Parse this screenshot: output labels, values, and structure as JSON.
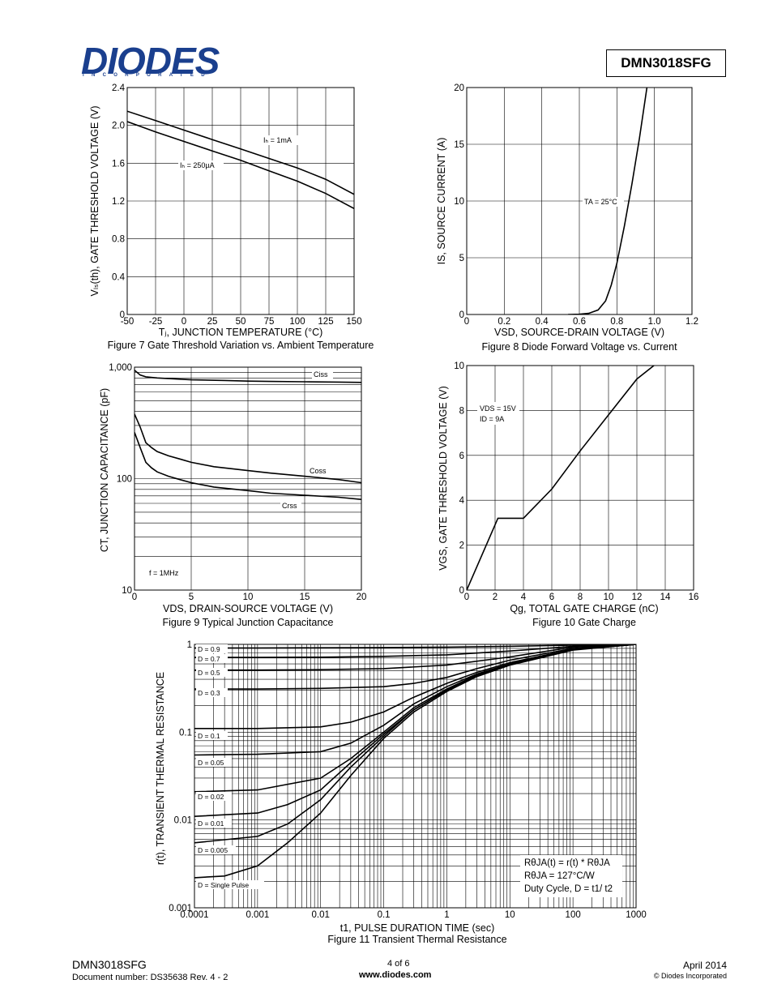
{
  "header": {
    "logo_text": "DIODES",
    "logo_sub": "INCORPORATED",
    "part_number": "DMN3018SFG"
  },
  "footer": {
    "part": "DMN3018SFG",
    "doc_number": "Document number: DS35638  Rev. 4 - 2",
    "page": "4 of 6",
    "website": "www.diodes.com",
    "date": "April 2014",
    "copyright": "© Diodes Incorporated"
  },
  "chart_data": [
    {
      "id": "fig7",
      "type": "line",
      "caption": "Figure 7  Gate Threshold Variation vs. Ambient Temperature",
      "xlabel": "Tⱼ, JUNCTION TEMPERATURE (°C)",
      "ylabel": "Vₗₛ(th), GATE THRESHOLD VOLTAGE (V)",
      "xlim": [
        -50,
        150
      ],
      "ylim": [
        0,
        2.4
      ],
      "x_ticks": [
        "-50",
        "-25",
        "0",
        "25",
        "50",
        "75",
        "100",
        "125",
        "150"
      ],
      "y_ticks": [
        "0",
        "0.4",
        "0.8",
        "1.2",
        "1.6",
        "2.0",
        "2.4"
      ],
      "series": [
        {
          "name": "Iₕ = 1mA",
          "x": [
            -50,
            -25,
            0,
            25,
            50,
            75,
            100,
            125,
            150
          ],
          "y": [
            2.15,
            2.05,
            1.95,
            1.85,
            1.75,
            1.65,
            1.55,
            1.43,
            1.27
          ]
        },
        {
          "name": "Iₕ = 250µA",
          "x": [
            -50,
            -25,
            0,
            25,
            50,
            75,
            100,
            125,
            150
          ],
          "y": [
            2.04,
            1.93,
            1.83,
            1.73,
            1.63,
            1.52,
            1.41,
            1.28,
            1.12
          ]
        }
      ]
    },
    {
      "id": "fig8",
      "type": "line",
      "caption": "Figure 8  Diode Forward Voltage vs. Current",
      "xlabel": "VSD, SOURCE-DRAIN VOLTAGE (V)",
      "ylabel": "IS, SOURCE CURRENT (A)",
      "xlim": [
        0,
        1.2
      ],
      "ylim": [
        0,
        20
      ],
      "x_ticks": [
        "0",
        "0.2",
        "0.4",
        "0.6",
        "0.8",
        "1.0",
        "1.2"
      ],
      "y_ticks": [
        "0",
        "5",
        "10",
        "15",
        "20"
      ],
      "annotation": "TA = 25°C",
      "series": [
        {
          "name": "",
          "x": [
            0.54,
            0.6,
            0.65,
            0.7,
            0.74,
            0.77,
            0.8,
            0.84,
            0.88,
            0.92,
            0.96
          ],
          "y": [
            0,
            0.02,
            0.1,
            0.4,
            1.2,
            2.6,
            4.5,
            7.8,
            11.5,
            15.5,
            20
          ]
        }
      ]
    },
    {
      "id": "fig9",
      "type": "line",
      "caption": "Figure 9 Typical Junction Capacitance",
      "xlabel": "VDS, DRAIN-SOURCE VOLTAGE (V)",
      "ylabel": "CT, JUNCTION CAPACITANCE (pF)",
      "xlim": [
        0,
        20
      ],
      "ylim": [
        10,
        1000
      ],
      "yscale": "log",
      "x_ticks": [
        "0",
        "5",
        "10",
        "15",
        "20"
      ],
      "y_ticks": [
        "10",
        "100",
        "1,000"
      ],
      "annotation": "f = 1MHz",
      "series": [
        {
          "name": "Ciss",
          "x": [
            0,
            0.5,
            1,
            2,
            3,
            5,
            8,
            10,
            12,
            15,
            18,
            20
          ],
          "y": [
            940,
            850,
            820,
            800,
            790,
            770,
            760,
            750,
            745,
            740,
            735,
            730
          ]
        },
        {
          "name": "Coss",
          "x": [
            0,
            0.5,
            1,
            1.5,
            2,
            3,
            4,
            5,
            7,
            10,
            12,
            15,
            18,
            20
          ],
          "y": [
            380,
            290,
            210,
            190,
            175,
            160,
            150,
            140,
            128,
            118,
            112,
            105,
            98,
            92
          ]
        },
        {
          "name": "Crss",
          "x": [
            0,
            0.5,
            1,
            1.5,
            2,
            3,
            4,
            5,
            7,
            10,
            12,
            15,
            18,
            20
          ],
          "y": [
            260,
            190,
            140,
            125,
            115,
            105,
            98,
            92,
            84,
            78,
            74,
            71,
            68,
            65
          ]
        }
      ]
    },
    {
      "id": "fig10",
      "type": "line",
      "caption": "Figure 10 Gate Charge",
      "xlabel": "Qg, TOTAL GATE CHARGE (nC)",
      "ylabel": "VGS, GATE THRESHOLD VOLTAGE (V)",
      "xlim": [
        0,
        16
      ],
      "ylim": [
        0,
        10
      ],
      "x_ticks": [
        "0",
        "2",
        "4",
        "6",
        "8",
        "10",
        "12",
        "14",
        "16"
      ],
      "y_ticks": [
        "0",
        "2",
        "4",
        "6",
        "8",
        "10"
      ],
      "annotation_lines": [
        "VDS = 15V",
        "ID = 9A"
      ],
      "series": [
        {
          "name": "",
          "x": [
            0,
            2.2,
            4.0,
            6.0,
            8.0,
            10.0,
            12.0,
            13.2
          ],
          "y": [
            0,
            3.2,
            3.2,
            4.5,
            6.2,
            7.8,
            9.4,
            10
          ]
        }
      ]
    },
    {
      "id": "fig11",
      "type": "line",
      "caption": "Figure 11 Transient Thermal Resistance",
      "xlabel": "t1, PULSE DURATION TIME (sec)",
      "ylabel": "r(t), TRANSIENT THERMAL RESISTANCE",
      "xlim": [
        0.0001,
        1000
      ],
      "ylim": [
        0.001,
        1
      ],
      "xscale": "log",
      "yscale": "log",
      "x_ticks": [
        "0.0001",
        "0.001",
        "0.01",
        "0.1",
        "1",
        "10",
        "100",
        "1000"
      ],
      "y_ticks": [
        "0.001",
        "0.01",
        "0.1",
        "1"
      ],
      "legend_lines": [
        "RθJA(t) = r(t) * RθJA",
        "RθJA = 127°C/W",
        "Duty Cycle, D = t1/ t2"
      ],
      "series": [
        {
          "name": "D = 0.9",
          "x": [
            0.0001,
            0.001,
            0.01,
            0.1,
            1,
            10,
            100,
            1000
          ],
          "y": [
            0.91,
            0.91,
            0.915,
            0.92,
            0.93,
            0.95,
            0.98,
            1.0
          ]
        },
        {
          "name": "D = 0.7",
          "x": [
            0.0001,
            0.001,
            0.01,
            0.1,
            1,
            10,
            100,
            1000
          ],
          "y": [
            0.71,
            0.71,
            0.715,
            0.73,
            0.76,
            0.84,
            0.95,
            1.0
          ]
        },
        {
          "name": "D = 0.5",
          "x": [
            0.0001,
            0.001,
            0.01,
            0.1,
            1,
            10,
            100,
            1000
          ],
          "y": [
            0.51,
            0.51,
            0.515,
            0.53,
            0.58,
            0.72,
            0.93,
            1.0
          ]
        },
        {
          "name": "D = 0.3",
          "x": [
            0.0001,
            0.001,
            0.01,
            0.1,
            0.3,
            1,
            3,
            10,
            100,
            1000
          ],
          "y": [
            0.31,
            0.31,
            0.315,
            0.33,
            0.36,
            0.42,
            0.53,
            0.66,
            0.9,
            1.0
          ]
        },
        {
          "name": "D = 0.1",
          "x": [
            0.0001,
            0.001,
            0.01,
            0.03,
            0.1,
            0.3,
            1,
            3,
            10,
            100,
            1000
          ],
          "y": [
            0.11,
            0.11,
            0.115,
            0.13,
            0.17,
            0.25,
            0.36,
            0.48,
            0.62,
            0.88,
            1.0
          ]
        },
        {
          "name": "D = 0.05",
          "x": [
            0.0001,
            0.001,
            0.01,
            0.03,
            0.1,
            0.3,
            1,
            3,
            10,
            100,
            1000
          ],
          "y": [
            0.055,
            0.056,
            0.06,
            0.075,
            0.12,
            0.21,
            0.33,
            0.46,
            0.6,
            0.87,
            1.0
          ]
        },
        {
          "name": "D = 0.02",
          "x": [
            0.0001,
            0.001,
            0.01,
            0.03,
            0.1,
            0.3,
            1,
            3,
            10,
            100,
            1000
          ],
          "y": [
            0.021,
            0.022,
            0.03,
            0.05,
            0.1,
            0.19,
            0.31,
            0.45,
            0.59,
            0.87,
            1.0
          ]
        },
        {
          "name": "D = 0.01",
          "x": [
            0.0001,
            0.001,
            0.003,
            0.01,
            0.03,
            0.1,
            0.3,
            1,
            3,
            10,
            100,
            1000
          ],
          "y": [
            0.011,
            0.012,
            0.015,
            0.022,
            0.045,
            0.095,
            0.18,
            0.3,
            0.44,
            0.59,
            0.87,
            1.0
          ]
        },
        {
          "name": "D = 0.005",
          "x": [
            0.0001,
            0.001,
            0.003,
            0.01,
            0.03,
            0.1,
            0.3,
            1,
            3,
            10,
            100,
            1000
          ],
          "y": [
            0.0055,
            0.0065,
            0.009,
            0.017,
            0.04,
            0.09,
            0.18,
            0.3,
            0.44,
            0.59,
            0.87,
            1.0
          ]
        },
        {
          "name": "D = Single Pulse",
          "x": [
            0.0001,
            0.0003,
            0.001,
            0.003,
            0.01,
            0.03,
            0.1,
            0.3,
            1,
            3,
            10,
            100,
            1000
          ],
          "y": [
            0.0022,
            0.0023,
            0.003,
            0.0055,
            0.012,
            0.032,
            0.085,
            0.17,
            0.29,
            0.43,
            0.58,
            0.86,
            1.0
          ]
        }
      ]
    }
  ]
}
